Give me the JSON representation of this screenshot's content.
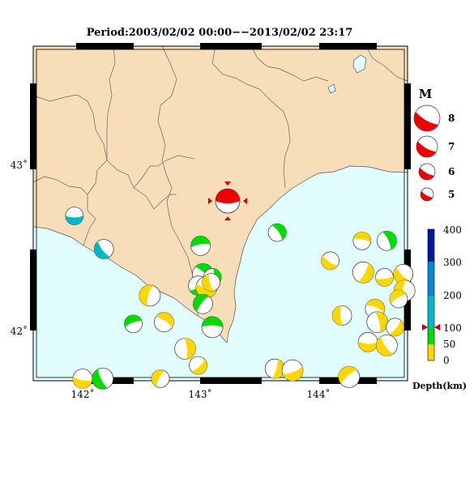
{
  "title": "Period:2003/02/02 00:00−−2013/02/02 23:17",
  "axes": {
    "x_ticks": [
      "142˚",
      "143˚",
      "144˚"
    ],
    "y_ticks": [
      "43˚",
      "42˚"
    ]
  },
  "magnitude_legend": {
    "title": "M",
    "items": [
      "8",
      "7",
      "6",
      "5"
    ]
  },
  "depth_legend": {
    "ticks": [
      "400",
      "300",
      "200",
      "100",
      "50",
      "0"
    ],
    "label": "Depth(km)",
    "marker_value": 100
  },
  "colors": {
    "land": "#f8ddb9",
    "sea": "#e1fdfd",
    "main_event": "#ee0000",
    "depth_0_50": "#ffd700",
    "depth_50_100": "#00dc00",
    "depth_100_200": "#00b8c8",
    "depth_200_300": "#0088d8",
    "depth_300_400": "#0018a8"
  },
  "main_event": {
    "lon": 143.23,
    "lat": 42.78,
    "magnitude": 7,
    "depth_km": 100
  },
  "events": [
    {
      "lon": 141.93,
      "lat": 42.69,
      "color": "teal"
    },
    {
      "lon": 142.18,
      "lat": 42.49,
      "color": "teal"
    },
    {
      "lon": 142.57,
      "lat": 42.21,
      "color": "yellow"
    },
    {
      "lon": 142.43,
      "lat": 42.04,
      "color": "green"
    },
    {
      "lon": 142.69,
      "lat": 42.05,
      "color": "yellow"
    },
    {
      "lon": 142.87,
      "lat": 41.89,
      "color": "yellow"
    },
    {
      "lon": 142.98,
      "lat": 41.79,
      "color": "yellow"
    },
    {
      "lon": 142.0,
      "lat": 41.71,
      "color": "yellow"
    },
    {
      "lon": 142.17,
      "lat": 41.71,
      "color": "green"
    },
    {
      "lon": 142.66,
      "lat": 41.71,
      "color": "yellow"
    },
    {
      "lon": 143.0,
      "lat": 42.51,
      "color": "green"
    },
    {
      "lon": 143.02,
      "lat": 42.34,
      "color": "green"
    },
    {
      "lon": 143.1,
      "lat": 42.32,
      "color": "green"
    },
    {
      "lon": 142.98,
      "lat": 42.27,
      "color": "green"
    },
    {
      "lon": 143.05,
      "lat": 42.26,
      "color": "yellow"
    },
    {
      "lon": 143.09,
      "lat": 42.29,
      "color": "yellow"
    },
    {
      "lon": 143.02,
      "lat": 42.16,
      "color": "green"
    },
    {
      "lon": 143.1,
      "lat": 42.02,
      "color": "green"
    },
    {
      "lon": 143.65,
      "lat": 42.59,
      "color": "green"
    },
    {
      "lon": 143.63,
      "lat": 41.77,
      "color": "yellow"
    },
    {
      "lon": 143.78,
      "lat": 41.76,
      "color": "yellow"
    },
    {
      "lon": 144.1,
      "lat": 42.42,
      "color": "yellow"
    },
    {
      "lon": 144.2,
      "lat": 42.09,
      "color": "yellow"
    },
    {
      "lon": 144.26,
      "lat": 41.72,
      "color": "yellow"
    },
    {
      "lon": 144.37,
      "lat": 42.54,
      "color": "yellow"
    },
    {
      "lon": 144.58,
      "lat": 42.54,
      "color": "green"
    },
    {
      "lon": 144.38,
      "lat": 42.35,
      "color": "yellow"
    },
    {
      "lon": 144.56,
      "lat": 42.32,
      "color": "yellow"
    },
    {
      "lon": 144.72,
      "lat": 42.34,
      "color": "yellow"
    },
    {
      "lon": 144.73,
      "lat": 42.24,
      "color": "yellow"
    },
    {
      "lon": 144.68,
      "lat": 42.19,
      "color": "yellow"
    },
    {
      "lon": 144.48,
      "lat": 42.13,
      "color": "yellow"
    },
    {
      "lon": 144.5,
      "lat": 42.05,
      "color": "yellow"
    },
    {
      "lon": 144.65,
      "lat": 42.02,
      "color": "yellow"
    },
    {
      "lon": 144.42,
      "lat": 41.93,
      "color": "yellow"
    },
    {
      "lon": 144.58,
      "lat": 41.91,
      "color": "yellow"
    }
  ]
}
